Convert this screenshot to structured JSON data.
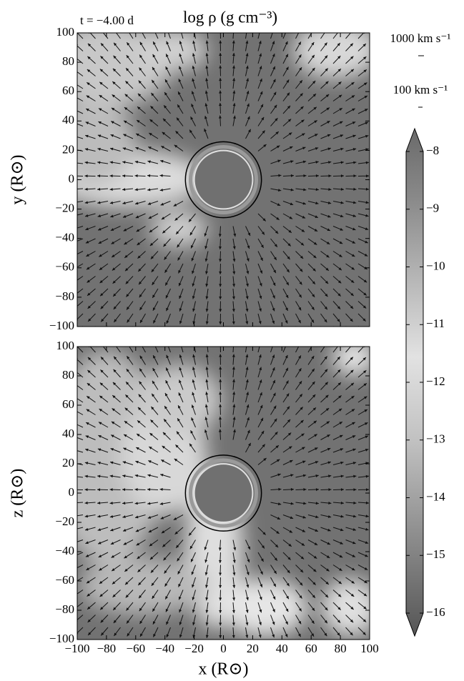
{
  "chart_data": [
    {
      "type": "quiver-map",
      "ylabel": "y (R⊙)",
      "xlim": [
        -100,
        100
      ],
      "ylim": [
        -100,
        100
      ],
      "xticks": [
        -100,
        -80,
        -60,
        -40,
        -20,
        0,
        20,
        40,
        60,
        80,
        100
      ],
      "show_xticklabels": false,
      "yticks": [
        {
          "value": -100,
          "label": "−100"
        },
        {
          "value": -80,
          "label": "−80"
        },
        {
          "value": -60,
          "label": "−60"
        },
        {
          "value": -40,
          "label": "−40"
        },
        {
          "value": -20,
          "label": "−20"
        },
        0,
        20,
        40,
        60,
        80,
        100
      ]
    },
    {
      "type": "quiver-map",
      "ylabel": "z (R⊙)",
      "xlabel": "x (R⊙)",
      "xlim": [
        -100,
        100
      ],
      "ylim": [
        -100,
        100
      ],
      "xticks": [
        {
          "value": -100,
          "label": "−100"
        },
        {
          "value": -80,
          "label": "−80"
        },
        {
          "value": -60,
          "label": "−60"
        },
        {
          "value": -40,
          "label": "−40"
        },
        {
          "value": -20,
          "label": "−20"
        },
        0,
        20,
        40,
        60,
        80,
        100
      ],
      "show_xticklabels": true,
      "yticks": [
        {
          "value": -100,
          "label": "−100"
        },
        {
          "value": -80,
          "label": "−80"
        },
        {
          "value": -60,
          "label": "−60"
        },
        {
          "value": -40,
          "label": "−40"
        },
        {
          "value": -20,
          "label": "−20"
        },
        0,
        20,
        40,
        60,
        80,
        100
      ]
    }
  ],
  "figure": {
    "time_label": "t = −4.00 d",
    "title": "log ρ (g cm⁻³)",
    "scale_labels": [
      "1000 km s⁻¹",
      "100 km s⁻¹"
    ],
    "colorbar": {
      "lim": [
        -16,
        -8
      ],
      "ticks": [
        {
          "value": -8,
          "label": "−8"
        },
        {
          "value": -9,
          "label": "−9"
        },
        {
          "value": -10,
          "label": "−10"
        },
        {
          "value": -11,
          "label": "−11"
        },
        {
          "value": -12,
          "label": "−12"
        },
        {
          "value": -13,
          "label": "−13"
        },
        {
          "value": -14,
          "label": "−14"
        },
        {
          "value": -15,
          "label": "−15"
        },
        {
          "value": -16,
          "label": "−16"
        }
      ]
    }
  }
}
